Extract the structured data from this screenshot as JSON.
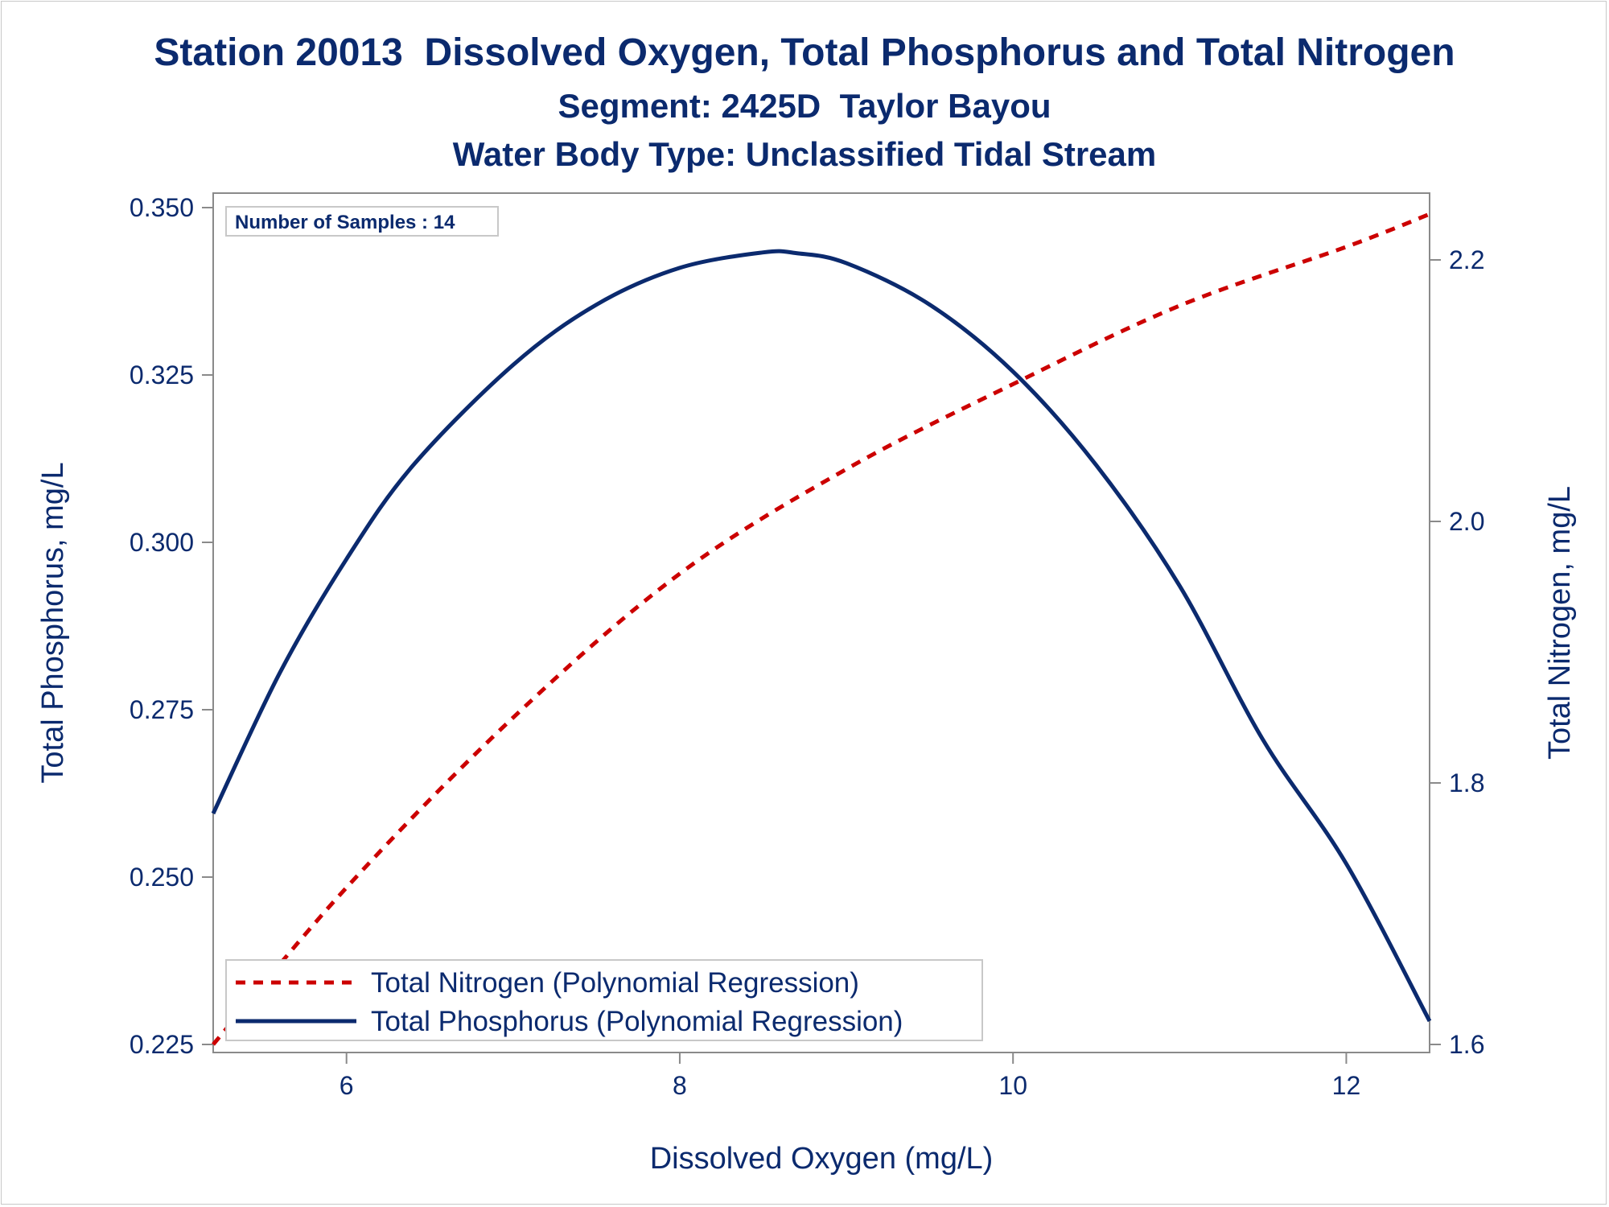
{
  "titles": {
    "line1": "Station 20013  Dissolved Oxygen, Total Phosphorus and Total Nitrogen",
    "line2": "Segment: 2425D  Taylor Bayou",
    "line3": "Water Body Type: Unclassified Tidal Stream"
  },
  "inset_label": "Number of Samples : 14",
  "colors": {
    "text": "#0b2a6e",
    "phosphorus_line": "#0b2a6e",
    "nitrogen_line": "#cc0000",
    "axis": "#8a8a8a",
    "background": "#ffffff"
  },
  "chart_data": {
    "type": "line",
    "xlabel": "Dissolved Oxygen (mg/L)",
    "ylabel": "Total Phosphorus, mg/L",
    "y2label": "Total Nitrogen, mg/L",
    "xlim": [
      5.2,
      12.5
    ],
    "ylim": [
      0.225,
      0.35
    ],
    "y2lim": [
      1.6,
      2.24
    ],
    "x_ticks": [
      6,
      8,
      10,
      12
    ],
    "x_tick_labels": [
      "6",
      "8",
      "10",
      "12"
    ],
    "y_ticks": [
      0.225,
      0.25,
      0.275,
      0.3,
      0.325,
      0.35
    ],
    "y_tick_labels": [
      "0.225",
      "0.250",
      "0.275",
      "0.300",
      "0.325",
      "0.350"
    ],
    "y2_ticks": [
      1.6,
      1.8,
      2.0,
      2.2
    ],
    "y2_tick_labels": [
      "1.6",
      "1.8",
      "2.0",
      "2.2"
    ],
    "grid": false,
    "legend_position": "bottom-left",
    "series": [
      {
        "name": "Total Nitrogen (Polynomial Regression)",
        "axis": "y2",
        "style": "dashed",
        "x": [
          5.2,
          6.0,
          7.0,
          8.0,
          9.0,
          10.0,
          11.0,
          12.0,
          12.5
        ],
        "y": [
          1.6,
          1.72,
          1.85,
          1.96,
          2.04,
          2.105,
          2.165,
          2.21,
          2.235
        ]
      },
      {
        "name": "Total Phosphorus (Polynomial Regression)",
        "axis": "y1",
        "style": "solid",
        "x": [
          5.2,
          5.6,
          6.0,
          6.4,
          7.0,
          7.5,
          8.0,
          8.5,
          8.7,
          9.0,
          9.5,
          10.0,
          10.5,
          11.0,
          11.5,
          12.0,
          12.5
        ],
        "y": [
          0.2595,
          0.2805,
          0.2975,
          0.3115,
          0.3265,
          0.3355,
          0.341,
          0.3433,
          0.3432,
          0.3417,
          0.3355,
          0.3255,
          0.3115,
          0.2935,
          0.2705,
          0.252,
          0.2285
        ]
      }
    ]
  }
}
